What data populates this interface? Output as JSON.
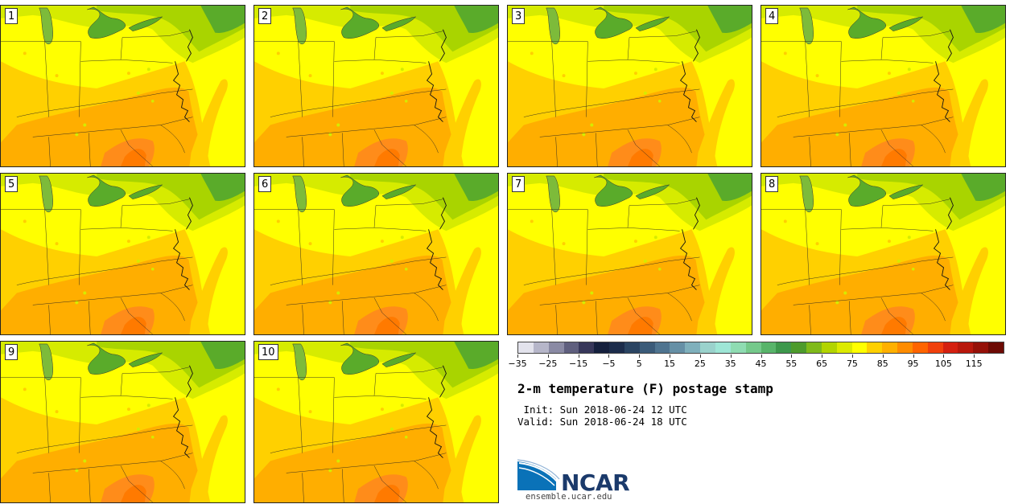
{
  "panels": [
    {
      "label": "1"
    },
    {
      "label": "2"
    },
    {
      "label": "3"
    },
    {
      "label": "4"
    },
    {
      "label": "5"
    },
    {
      "label": "6"
    },
    {
      "label": "7"
    },
    {
      "label": "8"
    },
    {
      "label": "9"
    },
    {
      "label": "10"
    }
  ],
  "colorbar": {
    "colors": [
      "#e3e3ec",
      "#b6b6c9",
      "#8a8aa4",
      "#5f5f7e",
      "#37375a",
      "#15203d",
      "#1c2c4b",
      "#2a4462",
      "#3b5b79",
      "#4f7490",
      "#6690a6",
      "#7fb0bc",
      "#9ad2cc",
      "#9ee6d6",
      "#8fdcb2",
      "#75c98b",
      "#58b46a",
      "#3d984c",
      "#4d9b2c",
      "#7fba1a",
      "#b2d400",
      "#dcea00",
      "#ffff00",
      "#ffd000",
      "#ffb000",
      "#ff8c00",
      "#ff6400",
      "#f0400c",
      "#d42010",
      "#b8180c",
      "#951108",
      "#6d0a04"
    ],
    "tick_labels": [
      "−35",
      "−25",
      "−15",
      "−5",
      "5",
      "15",
      "25",
      "35",
      "45",
      "55",
      "65",
      "75",
      "85",
      "95",
      "105",
      "115"
    ]
  },
  "title": "2-m temperature (F) postage stamp",
  "init_line": " Init: Sun 2018-06-24 12 UTC",
  "valid_line": "Valid: Sun 2018-06-24 18 UTC",
  "logo": {
    "text": "NCAR",
    "color": "#1b3a6b",
    "accent": "#0a72b8"
  },
  "site": "ensemble.ucar.edu"
}
